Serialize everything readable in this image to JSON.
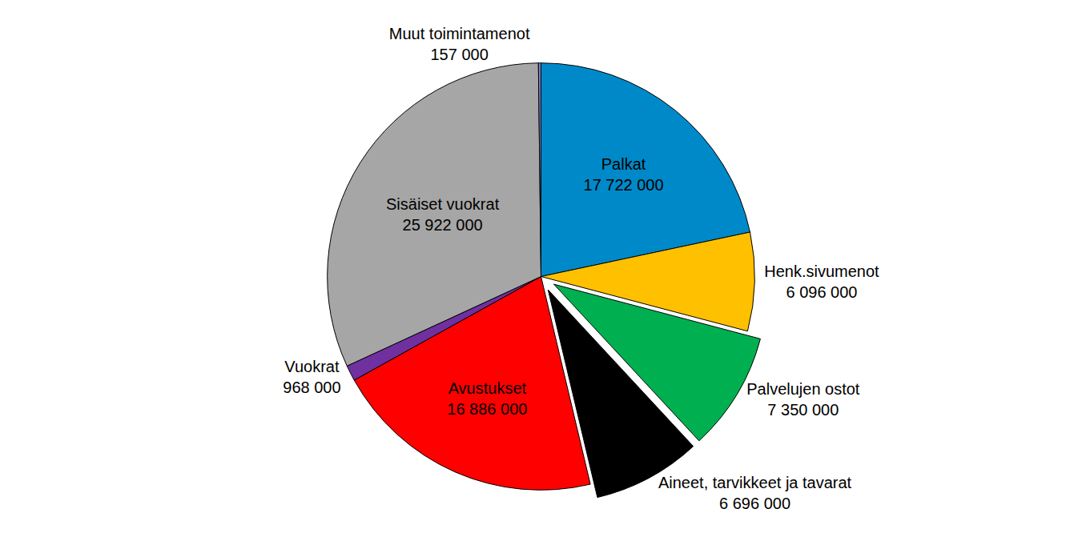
{
  "chart_data": {
    "type": "pie",
    "categories": [
      "Palkat",
      "Henk.sivumenot",
      "Palvelujen ostot",
      "Aineet, tarvikkeet ja tavarat",
      "Avustukset",
      "Vuokrat",
      "Sisäiset vuokrat",
      "Muut toimintamenot"
    ],
    "values": [
      17722000,
      6096000,
      7350000,
      6696000,
      16886000,
      968000,
      25922000,
      157000
    ],
    "value_labels": [
      "17 722 000",
      "6 096 000",
      "7 350 000",
      "6 696 000",
      "16 886 000",
      "968 000",
      "25 922 000",
      "157 000"
    ],
    "colors": [
      "#0089c9",
      "#ffc000",
      "#00b050",
      "#000000",
      "#ff0000",
      "#7030a0",
      "#a6a6a6",
      "#7f7fbf"
    ],
    "data_labels": true
  }
}
